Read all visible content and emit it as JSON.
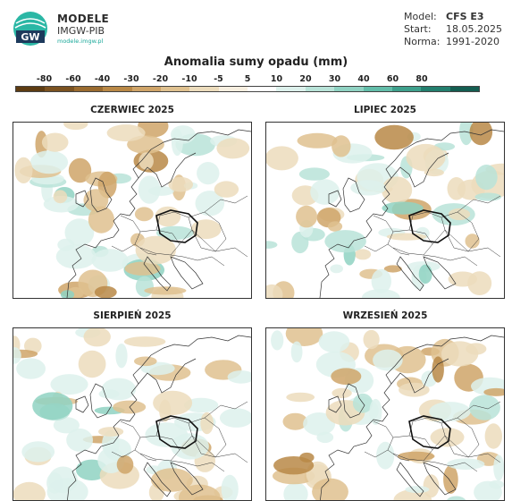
{
  "logo": {
    "title": "MODELE",
    "subtitle": "IMGW-PIB",
    "url": "modele.imgw.pl",
    "mark_text": "GW"
  },
  "meta": [
    {
      "key": "Model:",
      "value": "CFS E3"
    },
    {
      "key": "Start:",
      "value": "18.05.2025"
    },
    {
      "key": "Norma:",
      "value": "1991-2020"
    }
  ],
  "colorbar": {
    "title": "Anomalia sumy opadu (mm)",
    "ticks": [
      "-80",
      "-60",
      "-40",
      "-30",
      "-20",
      "-10",
      "-5",
      "5",
      "10",
      "20",
      "30",
      "40",
      "60",
      "80"
    ],
    "colors": [
      "#5e3c12",
      "#7b5220",
      "#9a6b2f",
      "#b98846",
      "#cfa468",
      "#dfc18f",
      "#ecdcbc",
      "#f7efe0",
      "#ffffff",
      "#ddf1ec",
      "#b8e3d8",
      "#8fd2c2",
      "#62bda9",
      "#3ea08c",
      "#237f6e",
      "#145e51"
    ]
  },
  "maps": [
    {
      "title": "CZERWIEC 2025"
    },
    {
      "title": "LIPIEC 2025"
    },
    {
      "title": "SIERPIEŃ 2025"
    },
    {
      "title": "WRZESIEŃ 2025"
    }
  ]
}
